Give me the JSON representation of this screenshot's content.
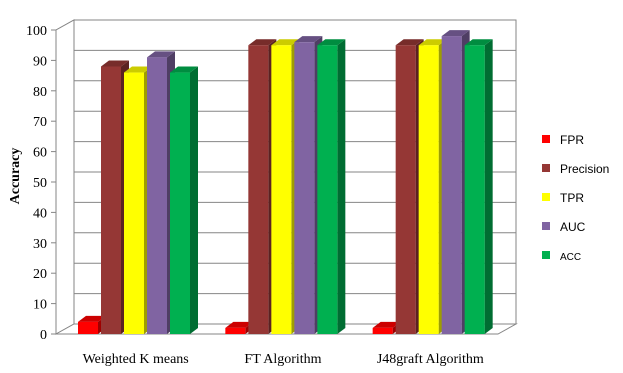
{
  "chart_data": {
    "type": "bar",
    "ylabel": "Accuracy",
    "xlabel": "",
    "ylim": [
      0,
      100
    ],
    "yticks": [
      "0",
      "10",
      "20",
      "30",
      "40",
      "50",
      "60",
      "70",
      "80",
      "90",
      "100"
    ],
    "grid": true,
    "legend_position": "right",
    "categories": [
      "Weighted K means",
      "FT Algorithm",
      "J48graft Algorithm"
    ],
    "series": [
      {
        "name": "FPR",
        "color": "#ff0000",
        "values": [
          4,
          2,
          2
        ]
      },
      {
        "name": "Precision",
        "color": "#953735",
        "values": [
          88,
          95,
          95
        ]
      },
      {
        "name": "TPR",
        "color": "#ffff00",
        "values": [
          86,
          95,
          95
        ]
      },
      {
        "name": "AUC",
        "color": "#8064a2",
        "values": [
          91,
          96,
          98
        ]
      },
      {
        "name": "ACC",
        "color": "#00b050",
        "values": [
          86,
          95,
          95
        ]
      }
    ]
  }
}
